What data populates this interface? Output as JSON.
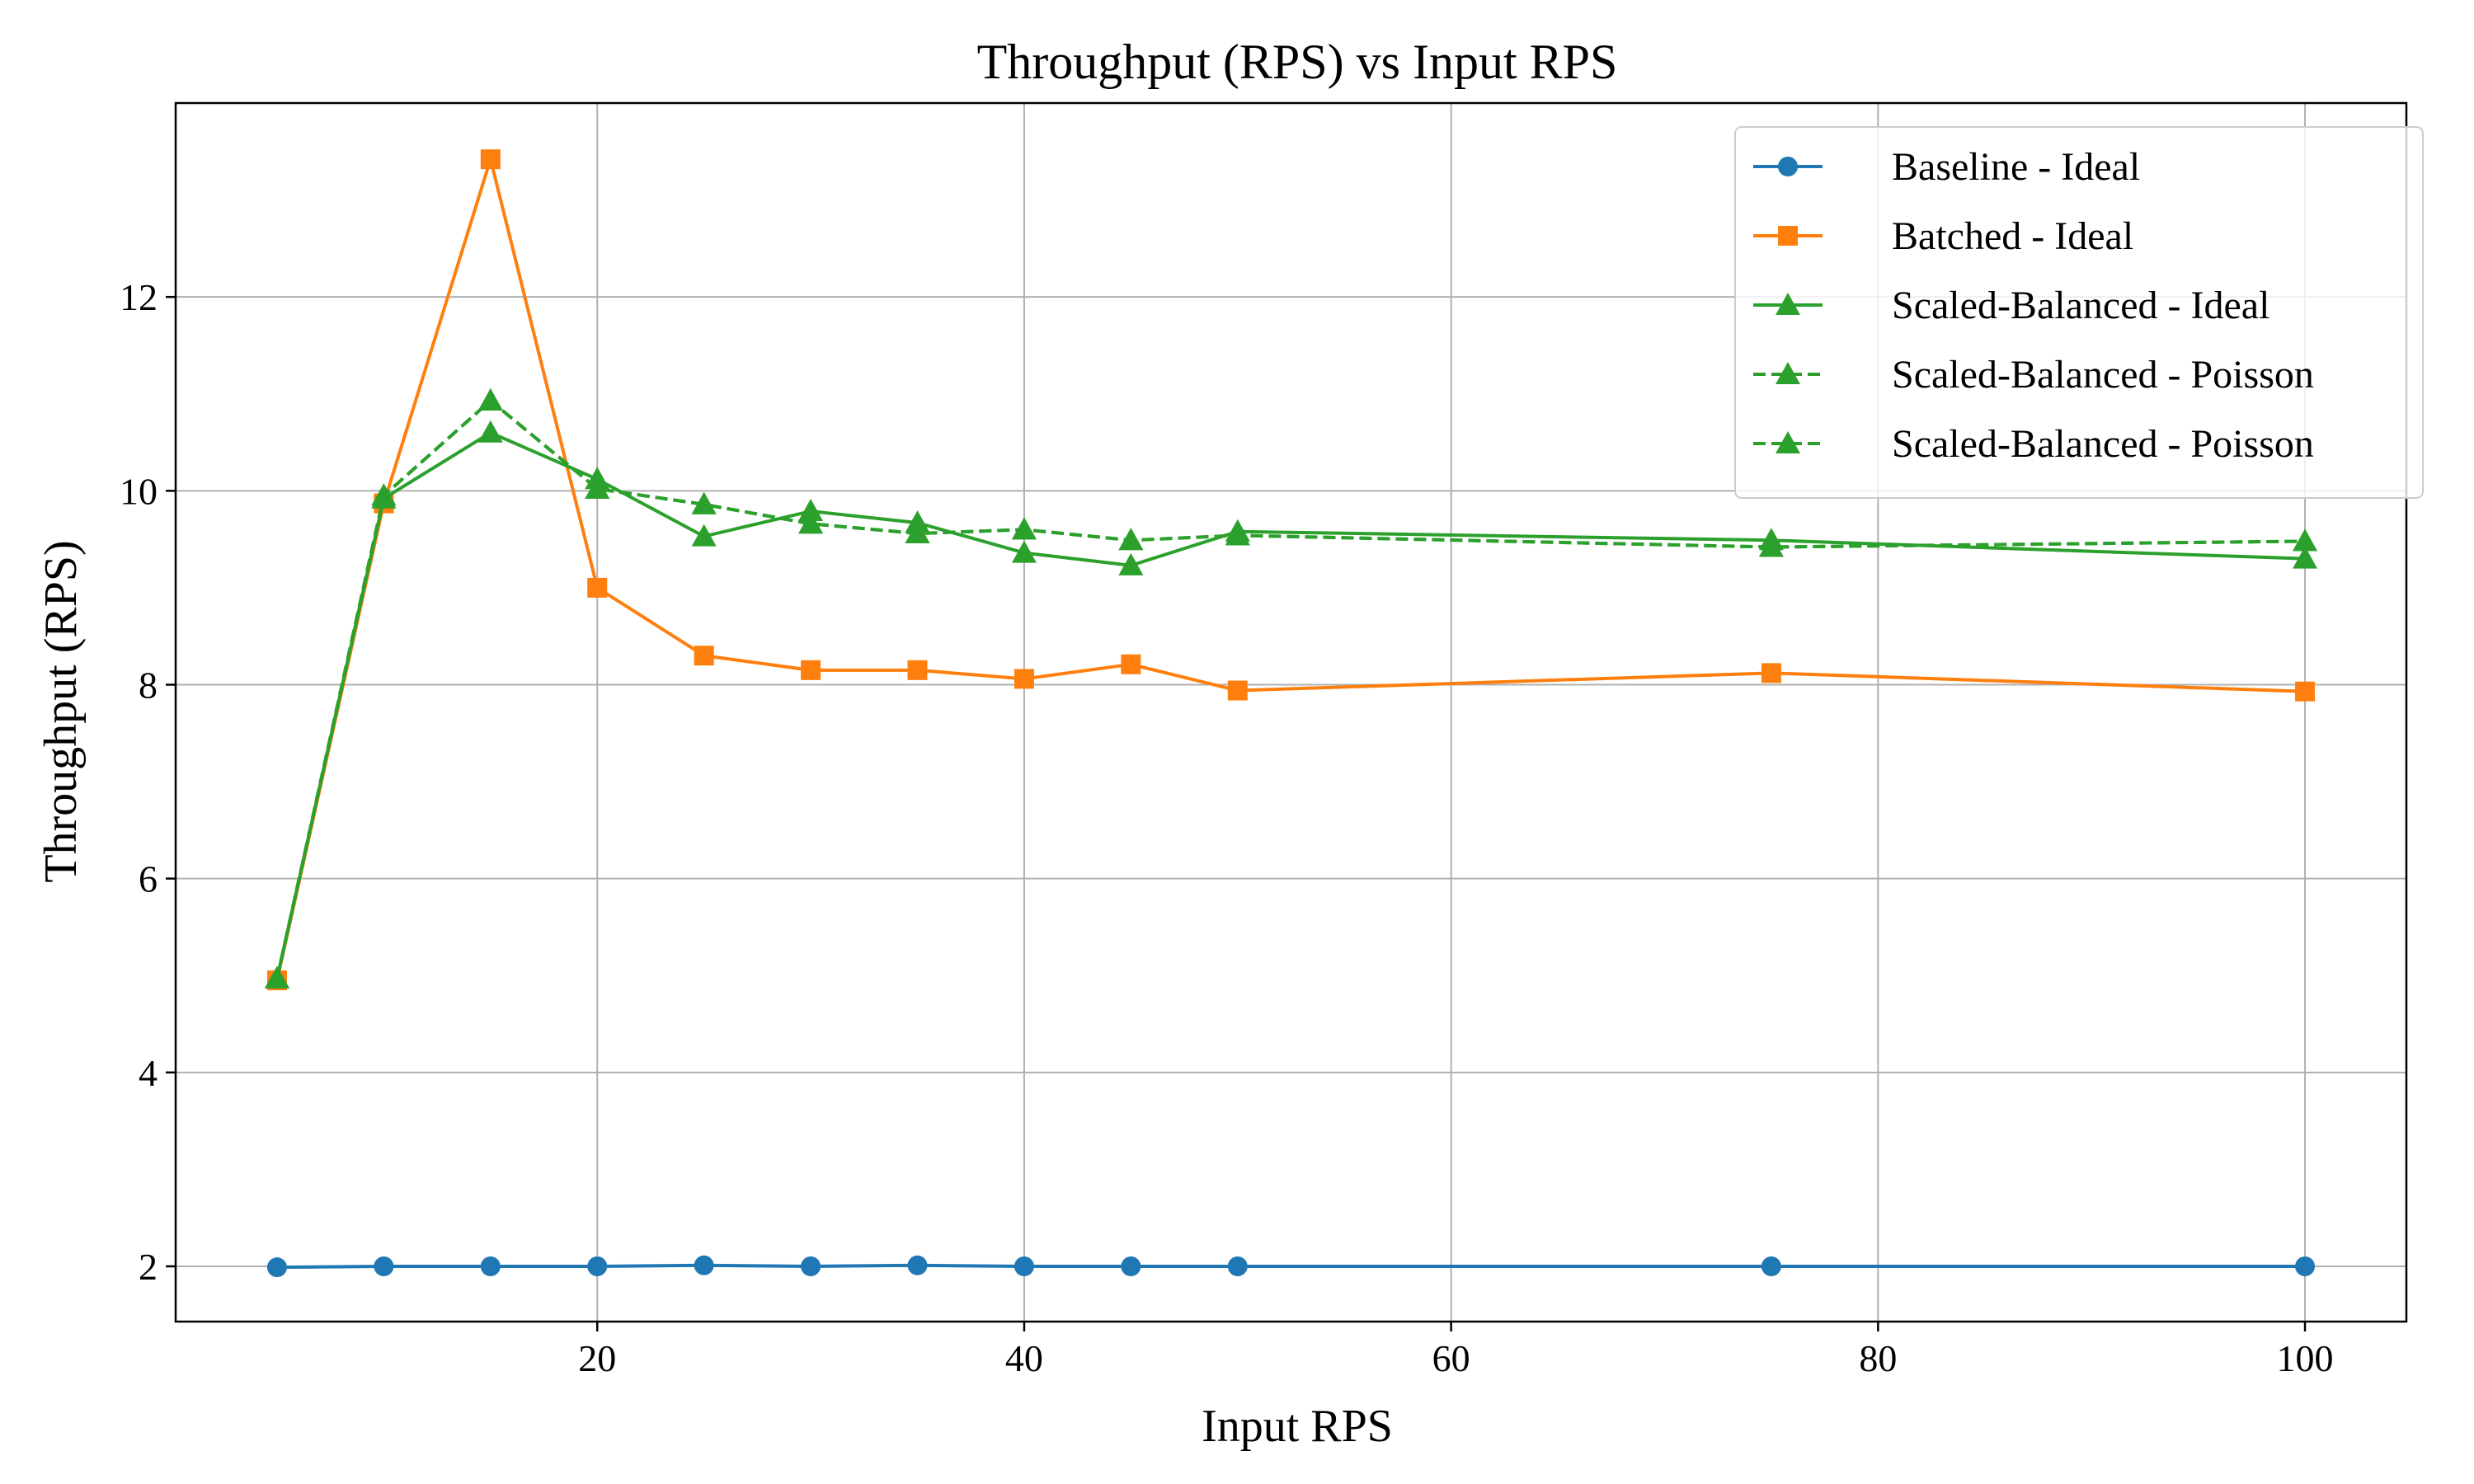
{
  "chart_data": {
    "type": "line",
    "title": "Throughput (RPS) vs Input RPS",
    "xlabel": "Input RPS",
    "ylabel": "Throughput (RPS)",
    "xlim": [
      0.25,
      104.75
    ],
    "ylim": [
      1.43,
      14.0
    ],
    "xticks": [
      20,
      40,
      60,
      80,
      100
    ],
    "yticks": [
      2,
      4,
      6,
      8,
      10,
      12
    ],
    "grid": true,
    "legend_position": "top-right",
    "series": [
      {
        "name": "Baseline - Ideal",
        "color": "#1f77b4",
        "line_style": "solid",
        "marker": "circle",
        "x": [
          5,
          10,
          15,
          20,
          25,
          30,
          35,
          40,
          45,
          50,
          75,
          100
        ],
        "y": [
          1.99,
          2.0,
          2.0,
          2.0,
          2.01,
          2.0,
          2.01,
          2.0,
          2.0,
          2.0,
          2.0,
          2.0
        ]
      },
      {
        "name": "Batched - Ideal",
        "color": "#ff7f0e",
        "line_style": "solid",
        "marker": "square",
        "x": [
          5,
          10,
          15,
          20,
          25,
          30,
          35,
          40,
          45,
          50,
          75,
          100
        ],
        "y": [
          4.95,
          9.87,
          13.42,
          9.0,
          8.3,
          8.15,
          8.15,
          8.06,
          8.21,
          7.94,
          8.12,
          7.93
        ]
      },
      {
        "name": "Scaled-Balanced - Ideal",
        "color": "#2ca02c",
        "line_style": "solid",
        "marker": "triangle",
        "x": [
          5,
          10,
          15,
          20,
          25,
          30,
          35,
          40,
          45,
          50,
          75,
          100
        ],
        "y": [
          4.97,
          9.92,
          10.6,
          10.12,
          9.53,
          9.79,
          9.67,
          9.36,
          9.23,
          9.58,
          9.49,
          9.3
        ]
      },
      {
        "name": "Scaled-Balanced - Poisson",
        "color": "#2ca02c",
        "line_style": "dashed",
        "marker": "triangle",
        "x": [
          5,
          10,
          15,
          20,
          25,
          30,
          35,
          40,
          45,
          50,
          75,
          100
        ],
        "y": [
          4.97,
          9.95,
          10.93,
          10.02,
          9.86,
          9.66,
          9.56,
          9.6,
          9.49,
          9.54,
          9.42,
          9.48
        ]
      },
      {
        "name": "Scaled-Balanced - Poisson",
        "color": "#2ca02c",
        "line_style": "dashed",
        "marker": "triangle",
        "x": [
          5,
          10,
          15,
          20,
          25,
          30,
          35,
          40,
          45,
          50,
          75,
          100
        ],
        "y": [
          4.97,
          9.95,
          10.93,
          10.02,
          9.86,
          9.66,
          9.56,
          9.6,
          9.49,
          9.54,
          9.42,
          9.48
        ]
      }
    ]
  }
}
